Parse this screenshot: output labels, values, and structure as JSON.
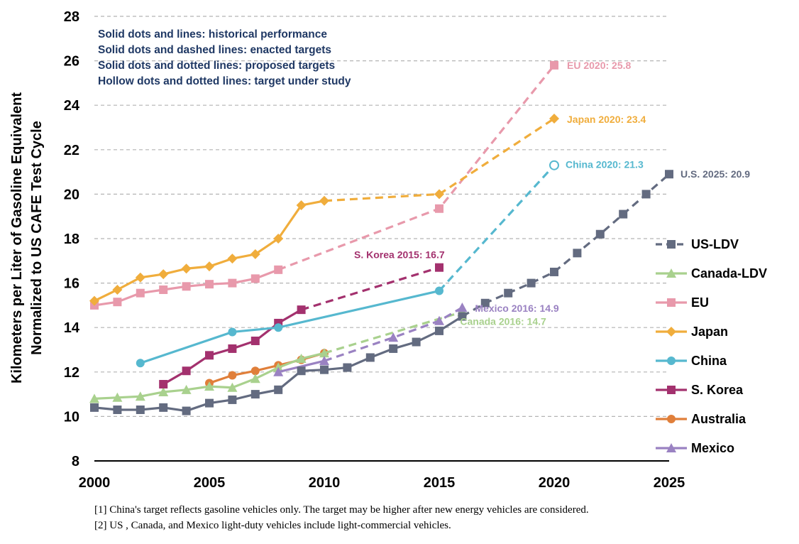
{
  "chart_data": {
    "type": "line",
    "ylabel": [
      "Kilometers per Liter of Gasoline Equivalent",
      "Normalized to US CAFE Test Cycle"
    ],
    "xlim": [
      2000,
      2025
    ],
    "ylim": [
      8,
      28
    ],
    "xticks": [
      "2000",
      "2005",
      "2010",
      "2015",
      "2020",
      "2025"
    ],
    "yticks": [
      "8",
      "10",
      "12",
      "14",
      "16",
      "18",
      "20",
      "22",
      "24",
      "26",
      "28"
    ],
    "grid": "horizontal dashed",
    "legend_position": "right",
    "notes": [
      "Solid dots and lines: historical performance",
      "Solid dots and dashed lines: enacted targets",
      "Solid dots and dotted lines: proposed targets",
      "Hollow dots and dotted lines: target under study"
    ],
    "series": [
      {
        "name": "US-LDV",
        "color": "#636b80",
        "marker": "square",
        "historical": [
          [
            2000,
            10.4
          ],
          [
            2001,
            10.3
          ],
          [
            2002,
            10.3
          ],
          [
            2003,
            10.4
          ],
          [
            2004,
            10.25
          ],
          [
            2005,
            10.6
          ],
          [
            2006,
            10.75
          ],
          [
            2007,
            11.0
          ],
          [
            2008,
            11.2
          ],
          [
            2009,
            12.05
          ],
          [
            2010,
            12.1
          ],
          [
            2011,
            12.2
          ],
          [
            2012,
            12.65
          ],
          [
            2013,
            13.05
          ],
          [
            2014,
            13.35
          ],
          [
            2015,
            13.85
          ],
          [
            2016,
            14.5
          ]
        ],
        "target": [
          [
            2016,
            14.5
          ],
          [
            2017,
            15.1
          ],
          [
            2018,
            15.55
          ],
          [
            2019,
            16.0
          ],
          [
            2020,
            16.5
          ],
          [
            2021,
            17.35
          ],
          [
            2022,
            18.2
          ],
          [
            2023,
            19.1
          ],
          [
            2024,
            20.0
          ],
          [
            2025,
            20.9
          ]
        ],
        "annotation": "U.S. 2025: 20.9"
      },
      {
        "name": "Canada-LDV",
        "color": "#a9d18e",
        "marker": "triangle",
        "historical": [
          [
            2000,
            10.8
          ],
          [
            2001,
            10.85
          ],
          [
            2002,
            10.9
          ],
          [
            2003,
            11.1
          ],
          [
            2004,
            11.2
          ],
          [
            2005,
            11.35
          ],
          [
            2006,
            11.3
          ],
          [
            2007,
            11.7
          ],
          [
            2008,
            12.2
          ],
          [
            2009,
            12.6
          ],
          [
            2010,
            12.85
          ]
        ],
        "target": [
          [
            2010,
            12.85
          ],
          [
            2016,
            14.7
          ]
        ],
        "annotation": "Canada 2016: 14.7"
      },
      {
        "name": "EU",
        "color": "#e899ab",
        "marker": "square",
        "historical": [
          [
            2000,
            15.0
          ],
          [
            2001,
            15.15
          ],
          [
            2002,
            15.55
          ],
          [
            2003,
            15.7
          ],
          [
            2004,
            15.85
          ],
          [
            2005,
            15.95
          ],
          [
            2006,
            16.0
          ],
          [
            2007,
            16.2
          ],
          [
            2008,
            16.6
          ]
        ],
        "target": [
          [
            2008,
            16.6
          ],
          [
            2015,
            19.35
          ],
          [
            2020,
            25.8
          ]
        ],
        "annotation": "EU 2020: 25.8"
      },
      {
        "name": "Japan",
        "color": "#f0ad3c",
        "marker": "diamond",
        "historical": [
          [
            2000,
            15.2
          ],
          [
            2001,
            15.7
          ],
          [
            2002,
            16.25
          ],
          [
            2003,
            16.4
          ],
          [
            2004,
            16.65
          ],
          [
            2005,
            16.75
          ],
          [
            2006,
            17.1
          ],
          [
            2007,
            17.3
          ],
          [
            2008,
            18.0
          ],
          [
            2009,
            19.5
          ],
          [
            2010,
            19.7
          ]
        ],
        "target": [
          [
            2010,
            19.7
          ],
          [
            2015,
            20.0
          ],
          [
            2020,
            23.4
          ]
        ],
        "annotation": "Japan 2020: 23.4"
      },
      {
        "name": "China",
        "color": "#56b8cf",
        "marker": "circle",
        "historical": [
          [
            2002,
            12.4
          ],
          [
            2006,
            13.8
          ],
          [
            2008,
            14.0
          ],
          [
            2015,
            15.65
          ]
        ],
        "target": [
          [
            2015,
            15.65
          ],
          [
            2020,
            21.3
          ]
        ],
        "annotation": "China 2020: 21.3"
      },
      {
        "name": "S. Korea",
        "color": "#a3316e",
        "marker": "square",
        "historical": [
          [
            2003,
            11.45
          ],
          [
            2004,
            12.05
          ],
          [
            2005,
            12.75
          ],
          [
            2006,
            13.05
          ],
          [
            2007,
            13.4
          ],
          [
            2008,
            14.2
          ],
          [
            2009,
            14.8
          ]
        ],
        "target": [
          [
            2009,
            14.8
          ],
          [
            2015,
            16.7
          ]
        ],
        "annotation": "S. Korea 2015: 16.7"
      },
      {
        "name": "Australia",
        "color": "#e07f3a",
        "marker": "circle",
        "historical": [
          [
            2005,
            11.5
          ],
          [
            2006,
            11.85
          ],
          [
            2007,
            12.05
          ],
          [
            2008,
            12.3
          ],
          [
            2009,
            12.55
          ],
          [
            2010,
            12.85
          ]
        ],
        "target": [],
        "annotation": ""
      },
      {
        "name": "Mexico",
        "color": "#9a82c2",
        "marker": "triangle",
        "historical": [
          [
            2008,
            12.0
          ],
          [
            2010,
            12.5
          ]
        ],
        "target": [
          [
            2010,
            12.5
          ],
          [
            2013,
            13.55
          ],
          [
            2015,
            14.3
          ],
          [
            2016,
            14.9
          ]
        ],
        "annotation": "Mexico 2016: 14.9"
      }
    ]
  },
  "footnotes": [
    "[1] China's target reflects gasoline vehicles only. The target may be higher after new energy vehicles are considered.",
    "[2] US , Canada, and Mexico light-duty vehicles include light-commercial vehicles."
  ]
}
